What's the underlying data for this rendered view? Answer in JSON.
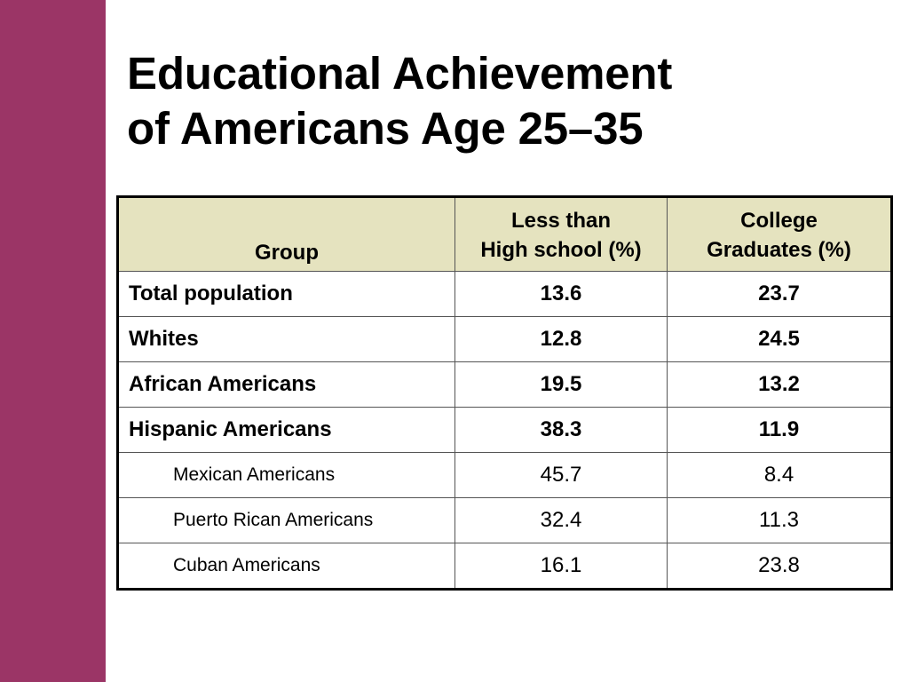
{
  "slide": {
    "title_line1": "Educational Achievement",
    "title_line2": "of Americans Age 25–35",
    "accent_color": "#9b3566",
    "header_fill": "#e5e3bf"
  },
  "table": {
    "headers": {
      "group": "Group",
      "less_hs_line1": "Less than",
      "less_hs_line2": "High school (%)",
      "college_line1": "College",
      "college_line2": "Graduates (%)"
    },
    "rows": [
      {
        "group": "Total population",
        "less_hs": "13.6",
        "college": "23.7"
      },
      {
        "group": "Whites",
        "less_hs": "12.8",
        "college": "24.5"
      },
      {
        "group": "African Americans",
        "less_hs": "19.5",
        "college": "13.2"
      },
      {
        "group": "Hispanic Americans",
        "less_hs": "38.3",
        "college": "11.9"
      },
      {
        "group": "Mexican Americans",
        "less_hs": "45.7",
        "college": "8.4"
      },
      {
        "group": "Puerto Rican Americans",
        "less_hs": "32.4",
        "college": "11.3"
      },
      {
        "group": "Cuban Americans",
        "less_hs": "16.1",
        "college": "23.8"
      }
    ]
  }
}
